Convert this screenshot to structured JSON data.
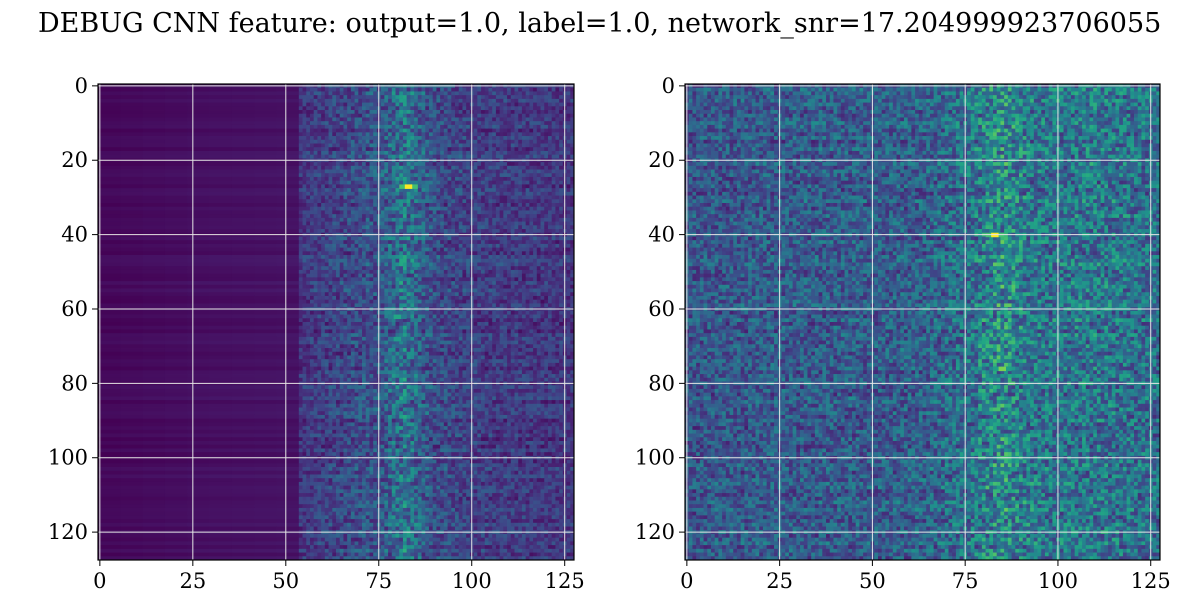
{
  "title": "DEBUG CNN feature: output=1.0, label=1.0, network_snr=17.204999923706055",
  "chart_data": [
    {
      "type": "heatmap",
      "panel": "left",
      "colormap": "viridis",
      "shape": [
        128,
        128
      ],
      "xlim": [
        -0.5,
        127.5
      ],
      "ylim": [
        127.5,
        -0.5
      ],
      "xticks": [
        0,
        25,
        50,
        75,
        100,
        125
      ],
      "yticks": [
        0,
        20,
        40,
        60,
        80,
        100,
        120
      ],
      "grid": true,
      "value_range": [
        0,
        1
      ],
      "column_profile": [
        {
          "x": 0,
          "mean": 0.02
        },
        {
          "x": 25,
          "mean": 0.04
        },
        {
          "x": 48,
          "mean": 0.05
        },
        {
          "x": 52,
          "mean": 0.12
        },
        {
          "x": 65,
          "mean": 0.18
        },
        {
          "x": 75,
          "mean": 0.22
        },
        {
          "x": 82,
          "mean": 0.32
        },
        {
          "x": 90,
          "mean": 0.2
        },
        {
          "x": 100,
          "mean": 0.16
        },
        {
          "x": 127,
          "mean": 0.13
        }
      ],
      "hotspots": [
        {
          "x": 83,
          "y": 27,
          "value": 1.0
        },
        {
          "x": 80,
          "y": 62,
          "value": 0.6
        },
        {
          "x": 80,
          "y": 68,
          "value": 0.55
        },
        {
          "x": 85,
          "y": 48,
          "value": 0.5
        },
        {
          "x": 84,
          "y": 93,
          "value": 0.45
        },
        {
          "x": 82,
          "y": 110,
          "value": 0.4
        }
      ]
    },
    {
      "type": "heatmap",
      "panel": "right",
      "colormap": "viridis",
      "shape": [
        128,
        128
      ],
      "xlim": [
        -0.5,
        127.5
      ],
      "ylim": [
        127.5,
        -0.5
      ],
      "xticks": [
        0,
        25,
        50,
        75,
        100,
        125
      ],
      "yticks": [
        0,
        20,
        40,
        60,
        80,
        100,
        120
      ],
      "grid": true,
      "value_range": [
        0,
        1
      ],
      "column_profile": [
        {
          "x": 0,
          "mean": 0.22
        },
        {
          "x": 25,
          "mean": 0.24
        },
        {
          "x": 50,
          "mean": 0.24
        },
        {
          "x": 65,
          "mean": 0.26
        },
        {
          "x": 75,
          "mean": 0.3
        },
        {
          "x": 84,
          "mean": 0.4
        },
        {
          "x": 95,
          "mean": 0.32
        },
        {
          "x": 110,
          "mean": 0.33
        },
        {
          "x": 127,
          "mean": 0.3
        }
      ],
      "hotspots": [
        {
          "x": 83,
          "y": 40,
          "value": 1.0
        },
        {
          "x": 85,
          "y": 76,
          "value": 0.8
        },
        {
          "x": 84,
          "y": 52,
          "value": 0.65
        },
        {
          "x": 84,
          "y": 36,
          "value": 0.6
        },
        {
          "x": 85,
          "y": 15,
          "value": 0.55
        },
        {
          "x": 82,
          "y": 95,
          "value": 0.55
        },
        {
          "x": 88,
          "y": 103,
          "value": 0.55
        },
        {
          "x": 112,
          "y": 103,
          "value": 0.5
        },
        {
          "x": 90,
          "y": 115,
          "value": 0.5
        },
        {
          "x": 113,
          "y": 16,
          "value": 0.45
        },
        {
          "x": 118,
          "y": 70,
          "value": 0.4
        }
      ]
    }
  ]
}
